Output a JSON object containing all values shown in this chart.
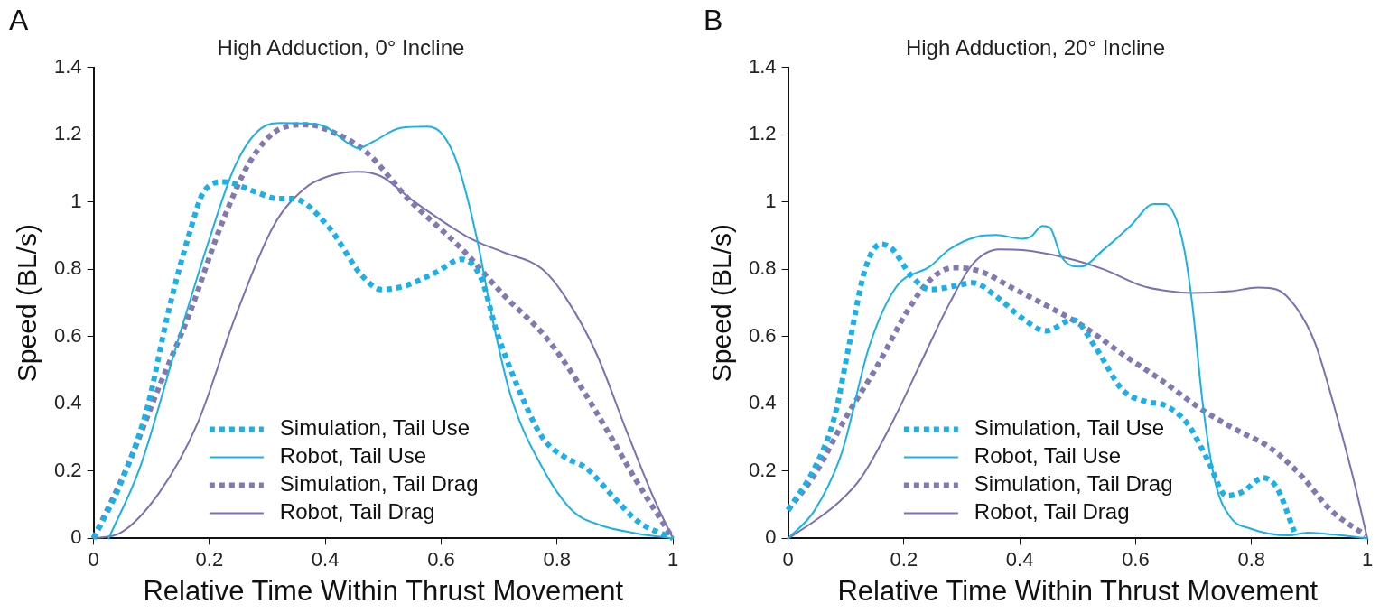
{
  "chart_data": [
    {
      "type": "line",
      "title": "High Adduction, 0° Incline",
      "xlabel": "Relative Time Within Thrust Movement",
      "ylabel": "Speed (BL/s)",
      "annotations": [
        "A"
      ],
      "xlim": [
        0,
        1
      ],
      "xticks": [
        0,
        0.2,
        0.4,
        0.6,
        0.8,
        1
      ],
      "ylim": [
        0,
        1.4
      ],
      "yticks": [
        0,
        0.2,
        0.4,
        0.6,
        0.8,
        1,
        1.2,
        1.4
      ],
      "grid": false,
      "legend": "bottom",
      "marker": "none",
      "series": [
        {
          "name": "Simulation, Tail Use",
          "color": "#1ab0ea",
          "line_style": "dotted",
          "x": [
            0,
            0.046,
            0.093,
            0.13,
            0.166,
            0.19,
            0.225,
            0.28,
            0.318,
            0.344,
            0.404,
            0.464,
            0.497,
            0.536,
            0.59,
            0.636,
            0.67,
            0.695,
            0.73,
            0.775,
            0.815,
            0.85,
            0.894,
            0.94,
            1
          ],
          "values": [
            0,
            0.16,
            0.39,
            0.68,
            0.91,
            1.03,
            1.06,
            1.03,
            1.01,
            1.01,
            0.93,
            0.78,
            0.74,
            0.75,
            0.79,
            0.83,
            0.77,
            0.62,
            0.46,
            0.3,
            0.24,
            0.21,
            0.13,
            0.05,
            0
          ]
        },
        {
          "name": "Robot, Tail Use",
          "color": "#1ab0ea",
          "line_style": "solid",
          "x": [
            0.026,
            0.08,
            0.146,
            0.2,
            0.245,
            0.29,
            0.325,
            0.39,
            0.444,
            0.457,
            0.483,
            0.53,
            0.576,
            0.603,
            0.629,
            0.662,
            0.689,
            0.72,
            0.775,
            0.828,
            0.874,
            0.934,
            1
          ],
          "values": [
            0,
            0.21,
            0.59,
            0.89,
            1.11,
            1.22,
            1.235,
            1.23,
            1.17,
            1.16,
            1.18,
            1.22,
            1.224,
            1.2,
            1.11,
            0.89,
            0.65,
            0.425,
            0.21,
            0.08,
            0.04,
            0.016,
            0
          ]
        },
        {
          "name": "Simulation, Tail Drag",
          "color": "#8378b0",
          "line_style": "dotted",
          "x": [
            0,
            0.06,
            0.113,
            0.166,
            0.22,
            0.27,
            0.325,
            0.37,
            0.41,
            0.47,
            0.543,
            0.636,
            0.71,
            0.78,
            0.834,
            0.887,
            0.934,
            1
          ],
          "values": [
            0,
            0.22,
            0.45,
            0.67,
            0.93,
            1.12,
            1.22,
            1.23,
            1.21,
            1.15,
            1.01,
            0.86,
            0.72,
            0.6,
            0.47,
            0.32,
            0.18,
            0
          ]
        },
        {
          "name": "Robot, Tail Drag",
          "color": "#7a70b4",
          "line_style": "solid",
          "x": [
            0,
            0.046,
            0.113,
            0.179,
            0.245,
            0.311,
            0.364,
            0.404,
            0.457,
            0.497,
            0.55,
            0.642,
            0.669,
            0.709,
            0.775,
            0.815,
            0.868,
            0.92,
            0.967,
            1
          ],
          "values": [
            0,
            0.016,
            0.135,
            0.34,
            0.66,
            0.93,
            1.04,
            1.076,
            1.09,
            1.076,
            1.006,
            0.9,
            0.877,
            0.85,
            0.8,
            0.716,
            0.55,
            0.32,
            0.12,
            0
          ]
        }
      ]
    },
    {
      "type": "line",
      "title": "High Adduction, 20° Incline",
      "xlabel": "Relative Time Within Thrust Movement",
      "ylabel": "Speed (BL/s)",
      "annotations": [
        "B"
      ],
      "xlim": [
        0,
        1
      ],
      "xticks": [
        0,
        0.2,
        0.4,
        0.6,
        0.8,
        1
      ],
      "ylim": [
        0,
        1.4
      ],
      "yticks": [
        0,
        0.2,
        0.4,
        0.6,
        0.8,
        1,
        1.2,
        1.4
      ],
      "grid": false,
      "legend": "bottom",
      "marker": "none",
      "series": [
        {
          "name": "Simulation, Tail Use",
          "color": "#1ab0ea",
          "line_style": "dotted",
          "x": [
            0,
            0.046,
            0.08,
            0.106,
            0.133,
            0.16,
            0.18,
            0.213,
            0.246,
            0.286,
            0.319,
            0.359,
            0.405,
            0.445,
            0.492,
            0.53,
            0.578,
            0.618,
            0.65,
            0.69,
            0.724,
            0.757,
            0.784,
            0.82,
            0.844,
            0.874
          ],
          "values": [
            0.084,
            0.21,
            0.36,
            0.58,
            0.8,
            0.875,
            0.86,
            0.78,
            0.74,
            0.75,
            0.76,
            0.72,
            0.654,
            0.617,
            0.65,
            0.57,
            0.44,
            0.407,
            0.396,
            0.34,
            0.235,
            0.127,
            0.138,
            0.18,
            0.15,
            0.02
          ]
        },
        {
          "name": "Robot, Tail Use",
          "color": "#1ab0ea",
          "line_style": "solid",
          "x": [
            0,
            0.046,
            0.093,
            0.14,
            0.186,
            0.246,
            0.279,
            0.326,
            0.359,
            0.405,
            0.419,
            0.439,
            0.452,
            0.472,
            0.505,
            0.545,
            0.591,
            0.631,
            0.651,
            0.671,
            0.684,
            0.697,
            0.717,
            0.737,
            0.764,
            0.797,
            0.864,
            0.897,
            0.944,
            1
          ],
          "values": [
            0,
            0.084,
            0.256,
            0.57,
            0.746,
            0.81,
            0.86,
            0.897,
            0.902,
            0.891,
            0.897,
            0.929,
            0.924,
            0.837,
            0.808,
            0.859,
            0.929,
            0.994,
            0.994,
            0.945,
            0.859,
            0.708,
            0.385,
            0.17,
            0.062,
            0.03,
            0.009,
            0.017,
            0.011,
            0
          ]
        },
        {
          "name": "Simulation, Tail Drag",
          "color": "#8378b0",
          "line_style": "dotted",
          "x": [
            0,
            0.046,
            0.1,
            0.153,
            0.206,
            0.246,
            0.286,
            0.332,
            0.392,
            0.452,
            0.512,
            0.578,
            0.644,
            0.717,
            0.777,
            0.83,
            0.884,
            0.937,
            0.997
          ],
          "values": [
            0.084,
            0.19,
            0.36,
            0.51,
            0.676,
            0.77,
            0.805,
            0.794,
            0.74,
            0.687,
            0.628,
            0.547,
            0.471,
            0.38,
            0.32,
            0.272,
            0.19,
            0.084,
            0.009
          ]
        },
        {
          "name": "Robot, Tail Drag",
          "color": "#7a70b4",
          "line_style": "solid",
          "x": [
            0,
            0.046,
            0.086,
            0.126,
            0.179,
            0.233,
            0.279,
            0.319,
            0.365,
            0.405,
            0.472,
            0.545,
            0.611,
            0.658,
            0.697,
            0.764,
            0.811,
            0.844,
            0.877,
            0.91,
            0.944,
            0.977,
            1
          ],
          "values": [
            0,
            0.052,
            0.105,
            0.18,
            0.342,
            0.536,
            0.7,
            0.816,
            0.859,
            0.857,
            0.837,
            0.8,
            0.751,
            0.735,
            0.73,
            0.735,
            0.746,
            0.74,
            0.687,
            0.58,
            0.385,
            0.17,
            0
          ]
        }
      ]
    }
  ]
}
